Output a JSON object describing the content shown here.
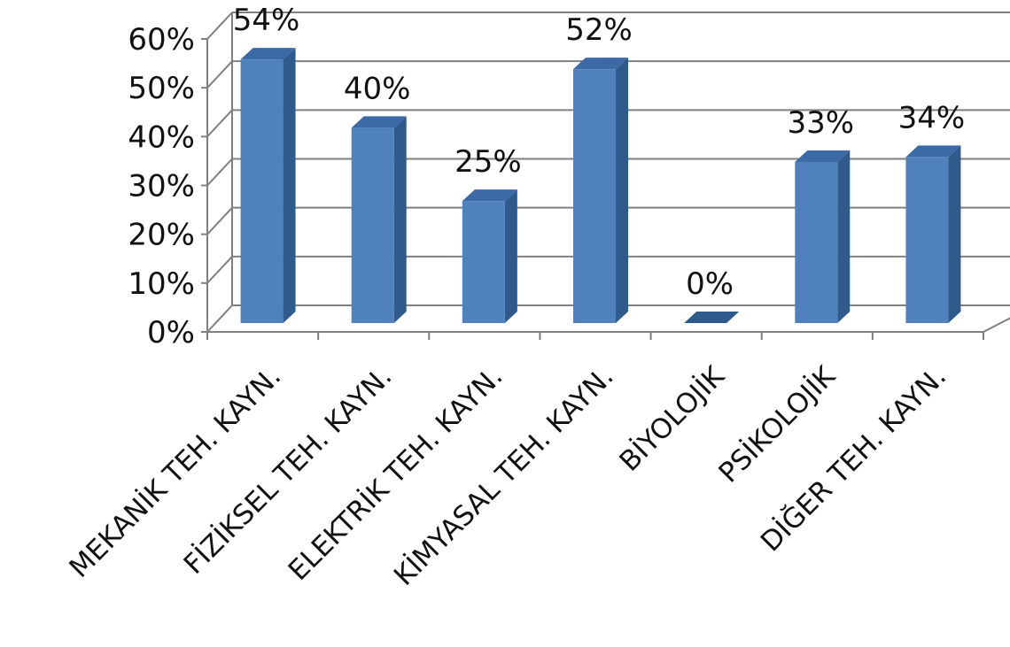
{
  "chart_data": {
    "type": "bar",
    "style": "3d-column",
    "categories": [
      "MEKANİK TEH. KAYN.",
      "FİZİKSEL TEH. KAYN.",
      "ELEKTRİK TEH. KAYN.",
      "KİMYASAL TEH. KAYN.",
      "BİYOLOJİK",
      "PSİKOLOJİK",
      "DİĞER TEH. KAYN."
    ],
    "values": [
      54,
      40,
      25,
      52,
      0,
      33,
      34
    ],
    "data_labels": [
      "54%",
      "40%",
      "25%",
      "52%",
      "0%",
      "33%",
      "34%"
    ],
    "y_ticks": [
      "0%",
      "10%",
      "20%",
      "30%",
      "40%",
      "50%",
      "60%"
    ],
    "ylim": [
      0,
      60
    ],
    "grid": true,
    "legend": "none",
    "title": "",
    "xlabel": "",
    "ylabel": "",
    "colors": {
      "bar_front": "#4f81bd",
      "bar_side": "#2f5a8c",
      "bar_top": "#3c6aa6",
      "grid": "#7f7f7f"
    }
  }
}
